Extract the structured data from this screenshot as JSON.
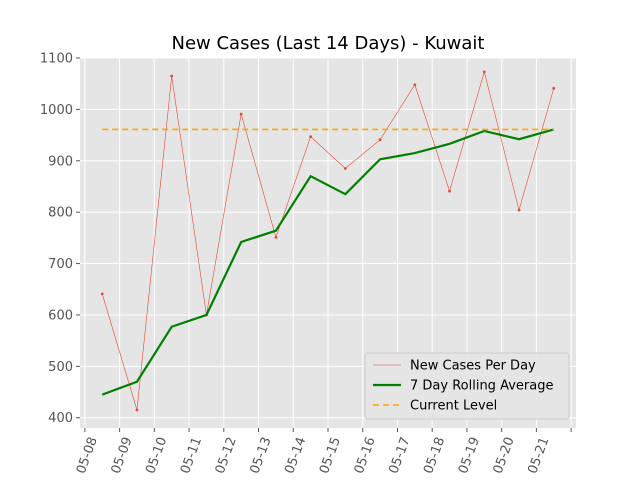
{
  "chart_data": {
    "type": "line",
    "title": "New Cases (Last 14 Days) - Kuwait",
    "xlabel": "",
    "ylabel": "",
    "x": [
      "05-08",
      "05-09",
      "05-10",
      "05-11",
      "05-12",
      "05-13",
      "05-14",
      "05-15",
      "05-16",
      "05-17",
      "05-18",
      "05-19",
      "05-20",
      "05-21"
    ],
    "ylim": [
      380,
      1100
    ],
    "yticks": [
      400,
      500,
      600,
      700,
      800,
      900,
      1000,
      1100
    ],
    "grid": true,
    "legend_position": "lower-right",
    "series": [
      {
        "name": "New Cases Per Day",
        "style": "thin-line-with-dots",
        "color": "#e24a33",
        "values": [
          641,
          415,
          1065,
          600,
          991,
          751,
          947,
          885,
          941,
          1048,
          841,
          1073,
          804,
          1041
        ]
      },
      {
        "name": "7 Day Rolling Average",
        "style": "thick-line",
        "color": "#008000",
        "values": [
          445,
          470,
          577,
          600,
          742,
          764,
          870,
          835,
          903,
          915,
          933,
          958,
          942,
          961
        ]
      },
      {
        "name": "Current Level",
        "style": "dashed",
        "color": "#ffa500",
        "values": [
          961,
          961,
          961,
          961,
          961,
          961,
          961,
          961,
          961,
          961,
          961,
          961,
          961,
          961
        ]
      }
    ]
  }
}
